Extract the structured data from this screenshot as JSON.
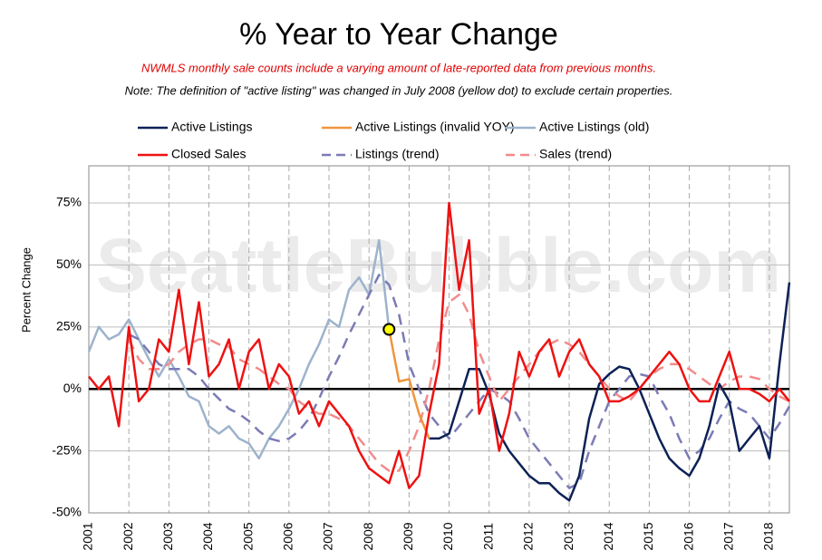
{
  "chart_data": {
    "type": "line",
    "title": "% Year to Year Change",
    "subtitle": "NWMLS monthly sale counts include a varying amount of late-reported data from previous months.",
    "note": "Note: The definition of \"active listing\" was changed in July 2008 (yellow dot) to exclude certain properties.",
    "watermark": "SeattleBubble.com",
    "y_label": "Percent Change",
    "xlim": [
      2001,
      2018.5
    ],
    "ylim": [
      -50,
      90
    ],
    "xticks": [
      2001,
      2002,
      2003,
      2004,
      2005,
      2006,
      2007,
      2008,
      2009,
      2010,
      2011,
      2012,
      2013,
      2014,
      2015,
      2016,
      2017,
      2018
    ],
    "yticks": [
      {
        "value": -50,
        "label": "-50%"
      },
      {
        "value": -25,
        "label": "-25%"
      },
      {
        "value": 0,
        "label": "0%"
      },
      {
        "value": 25,
        "label": "25%"
      },
      {
        "value": 50,
        "label": "50%"
      },
      {
        "value": 75,
        "label": "75%"
      }
    ],
    "grid": true,
    "x": [
      2001,
      2001.25,
      2001.5,
      2001.75,
      2002,
      2002.25,
      2002.5,
      2002.75,
      2003,
      2003.25,
      2003.5,
      2003.75,
      2004,
      2004.25,
      2004.5,
      2004.75,
      2005,
      2005.25,
      2005.5,
      2005.75,
      2006,
      2006.25,
      2006.5,
      2006.75,
      2007,
      2007.25,
      2007.5,
      2007.75,
      2008,
      2008.25,
      2008.5,
      2008.75,
      2009,
      2009.25,
      2009.5,
      2009.75,
      2010,
      2010.25,
      2010.5,
      2010.75,
      2011,
      2011.25,
      2011.5,
      2011.75,
      2012,
      2012.25,
      2012.5,
      2012.75,
      2013,
      2013.25,
      2013.5,
      2013.75,
      2014,
      2014.25,
      2014.5,
      2014.75,
      2015,
      2015.25,
      2015.5,
      2015.75,
      2016,
      2016.25,
      2016.5,
      2016.75,
      2017,
      2017.25,
      2017.5,
      2017.75,
      2018,
      2018.25,
      2018.5
    ],
    "series": [
      {
        "name": "Active Listings",
        "color": "#0d2156",
        "style": "solid",
        "values": [
          null,
          null,
          null,
          null,
          null,
          null,
          null,
          null,
          null,
          null,
          null,
          null,
          null,
          null,
          null,
          null,
          null,
          null,
          null,
          null,
          null,
          null,
          null,
          null,
          null,
          null,
          null,
          null,
          null,
          null,
          null,
          null,
          null,
          null,
          -20,
          -20,
          -18,
          -5,
          8,
          8,
          -2,
          -18,
          -25,
          -30,
          -35,
          -38,
          -38,
          -42,
          -45,
          -35,
          -12,
          2,
          6,
          9,
          8,
          0,
          -10,
          -20,
          -28,
          -32,
          -35,
          -28,
          -15,
          2,
          -5,
          -25,
          -20,
          -15,
          -28,
          10,
          43
        ]
      },
      {
        "name": "Active Listings (invalid YOY)",
        "color": "#f0953f",
        "style": "solid",
        "values": [
          null,
          null,
          null,
          null,
          null,
          null,
          null,
          null,
          null,
          null,
          null,
          null,
          null,
          null,
          null,
          null,
          null,
          null,
          null,
          null,
          null,
          null,
          null,
          null,
          null,
          null,
          null,
          null,
          null,
          null,
          24,
          3,
          4,
          -10,
          -20,
          null,
          null,
          null,
          null,
          null,
          null,
          null,
          null,
          null,
          null,
          null,
          null,
          null,
          null,
          null,
          null,
          null,
          null,
          null,
          null,
          null,
          null,
          null,
          null,
          null,
          null,
          null,
          null,
          null,
          null,
          null,
          null,
          null,
          null,
          null,
          null
        ]
      },
      {
        "name": "Active Listings (old)",
        "color": "#9db3cc",
        "style": "solid",
        "values": [
          15,
          25,
          20,
          22,
          28,
          20,
          12,
          5,
          12,
          5,
          -3,
          -5,
          -15,
          -18,
          -15,
          -20,
          -22,
          -28,
          -20,
          -15,
          -8,
          0,
          10,
          18,
          28,
          25,
          40,
          45,
          38,
          60,
          24,
          null,
          null,
          null,
          null,
          null,
          null,
          null,
          null,
          null,
          null,
          null,
          null,
          null,
          null,
          null,
          null,
          null,
          null,
          null,
          null,
          null,
          null,
          null,
          null,
          null,
          null,
          null,
          null,
          null,
          null,
          null,
          null,
          null,
          null,
          null,
          null,
          null,
          null,
          null,
          null
        ]
      },
      {
        "name": "Closed Sales",
        "color": "#ee1111",
        "style": "solid",
        "values": [
          5,
          0,
          5,
          -15,
          25,
          -5,
          0,
          20,
          15,
          40,
          10,
          35,
          5,
          10,
          20,
          0,
          15,
          20,
          0,
          10,
          5,
          -10,
          -5,
          -15,
          -5,
          -10,
          -15,
          -25,
          -32,
          -35,
          -38,
          -25,
          -40,
          -35,
          -10,
          10,
          75,
          40,
          60,
          -10,
          0,
          -25,
          -10,
          15,
          5,
          15,
          20,
          5,
          15,
          20,
          10,
          5,
          -5,
          -5,
          -3,
          0,
          5,
          10,
          15,
          10,
          0,
          -5,
          -5,
          5,
          15,
          0,
          0,
          -2,
          -5,
          0,
          -5
        ]
      },
      {
        "name": "Listings (trend)",
        "color": "#7b7bb5",
        "style": "dashed",
        "values": [
          null,
          null,
          null,
          null,
          22,
          20,
          15,
          10,
          8,
          8,
          8,
          5,
          0,
          -4,
          -8,
          -10,
          -13,
          -17,
          -20,
          -21,
          -20,
          -17,
          -12,
          -4,
          5,
          13,
          22,
          30,
          38,
          46,
          42,
          30,
          10,
          0,
          -10,
          -15,
          -20,
          -15,
          -10,
          -5,
          0,
          -2,
          -5,
          -12,
          -20,
          -25,
          -30,
          -35,
          -40,
          -38,
          -25,
          -15,
          -5,
          0,
          5,
          6,
          5,
          -3,
          -10,
          -20,
          -28,
          -25,
          -20,
          -12,
          -5,
          -8,
          -10,
          -15,
          -20,
          -14,
          -7
        ]
      },
      {
        "name": "Sales (trend)",
        "color": "#f28b8b",
        "style": "dashed",
        "values": [
          null,
          null,
          null,
          null,
          20,
          12,
          8,
          8,
          10,
          15,
          18,
          20,
          20,
          18,
          17,
          12,
          10,
          8,
          5,
          2,
          0,
          -5,
          -8,
          -10,
          -10,
          -12,
          -15,
          -20,
          -25,
          -30,
          -33,
          -33,
          -25,
          -15,
          0,
          20,
          35,
          38,
          30,
          15,
          5,
          -5,
          0,
          5,
          10,
          15,
          18,
          20,
          18,
          15,
          10,
          5,
          0,
          -3,
          -5,
          0,
          5,
          8,
          10,
          10,
          8,
          5,
          2,
          0,
          3,
          5,
          5,
          4,
          0,
          -3,
          -5
        ]
      }
    ]
  }
}
